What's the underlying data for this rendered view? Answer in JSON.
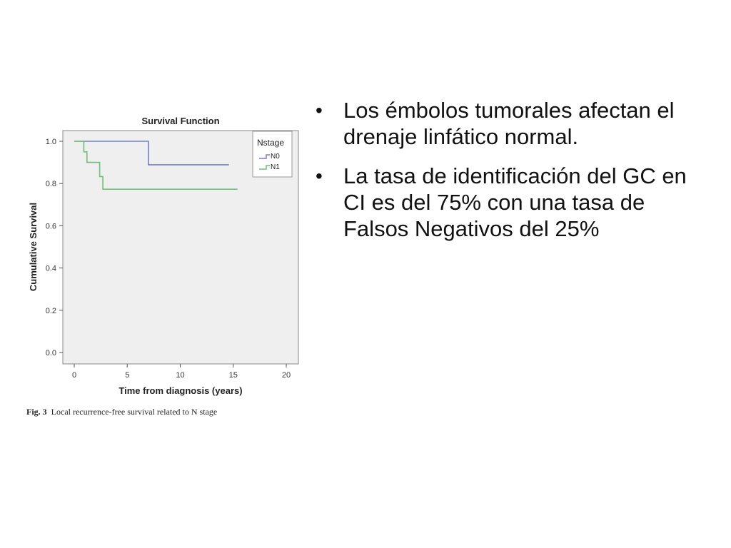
{
  "chart_data": {
    "type": "line",
    "title": "Survival Function",
    "xlabel": "Time from diagnosis (years)",
    "ylabel": "Cumulative Survival",
    "xlim": [
      0,
      20
    ],
    "ylim": [
      0,
      1.0
    ],
    "x_ticks": [
      0,
      5,
      10,
      15,
      20
    ],
    "y_ticks": [
      0.0,
      0.2,
      0.4,
      0.6,
      0.8,
      1.0
    ],
    "x_tick_labels": [
      "0",
      "5",
      "10",
      "15",
      "20"
    ],
    "y_tick_labels": [
      "0.0",
      "0.2",
      "0.4",
      "0.6",
      "0.8",
      "1.0"
    ],
    "grid": false,
    "legend": {
      "title": "Nstage",
      "position": "top-right"
    },
    "plot_background": "#efefef",
    "series": [
      {
        "name": "N0",
        "color": "#7480c4",
        "step_points": [
          [
            0,
            1.0
          ],
          [
            7.0,
            1.0
          ],
          [
            7.0,
            0.889
          ],
          [
            14.6,
            0.889
          ]
        ]
      },
      {
        "name": "N1",
        "color": "#6cc07a",
        "step_points": [
          [
            0,
            1.0
          ],
          [
            0.9,
            1.0
          ],
          [
            0.9,
            0.95
          ],
          [
            1.2,
            0.95
          ],
          [
            1.2,
            0.9
          ],
          [
            2.4,
            0.9
          ],
          [
            2.4,
            0.833
          ],
          [
            2.7,
            0.833
          ],
          [
            2.7,
            0.773
          ],
          [
            15.4,
            0.773
          ]
        ]
      }
    ]
  },
  "caption": {
    "label": "Fig. 3",
    "text": "Local recurrence-free survival related to N stage"
  },
  "bullets": [
    "Los émbolos tumorales afectan el drenaje linfático normal.",
    "La tasa de identificación del GC en CI es del 75% con una tasa de Falsos Negativos del 25%"
  ],
  "bullet_glyph": "•"
}
